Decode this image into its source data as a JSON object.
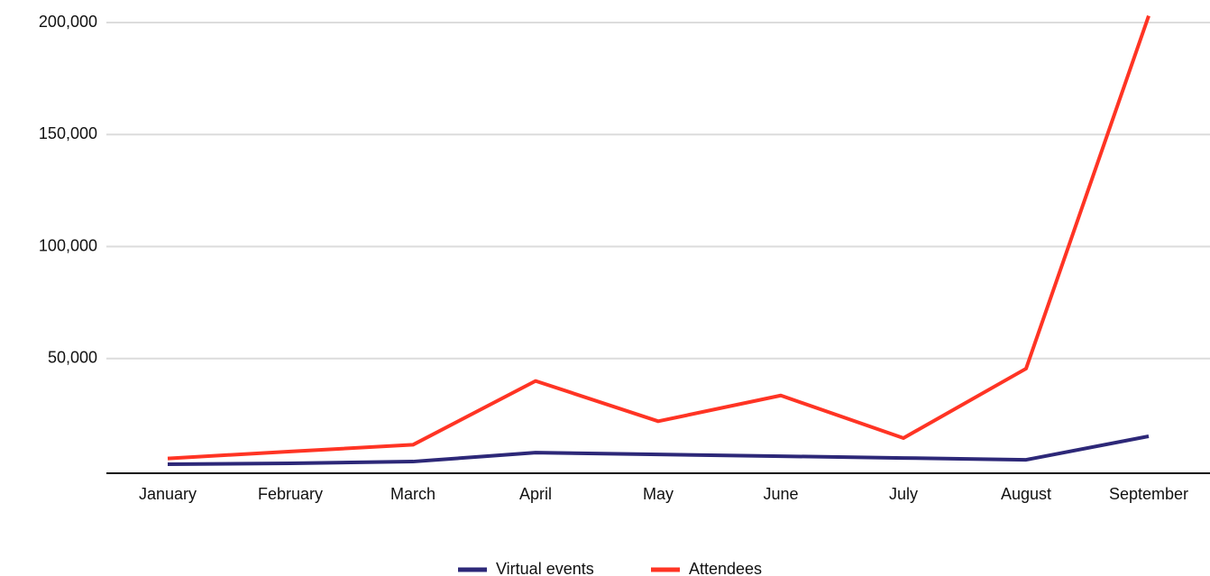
{
  "chart_data": {
    "type": "line",
    "categories": [
      "January",
      "February",
      "March",
      "April",
      "May",
      "June",
      "July",
      "August",
      "September"
    ],
    "series": [
      {
        "name": "Virtual events",
        "color": "#2d2878",
        "values": [
          2800,
          3200,
          4000,
          8000,
          7200,
          6400,
          5600,
          4800,
          15300
        ]
      },
      {
        "name": "Attendees",
        "color": "#ff3424",
        "values": [
          5400,
          8500,
          11500,
          40000,
          22000,
          33500,
          14500,
          45500,
          203000
        ]
      }
    ],
    "ylim": [
      0,
      210000
    ],
    "yticks": [
      {
        "value": 50000,
        "label": "50,000"
      },
      {
        "value": 100000,
        "label": "100,000"
      },
      {
        "value": 150000,
        "label": "150,000"
      },
      {
        "value": 200000,
        "label": "200,000"
      }
    ],
    "grid": true,
    "legend": "bottom"
  }
}
